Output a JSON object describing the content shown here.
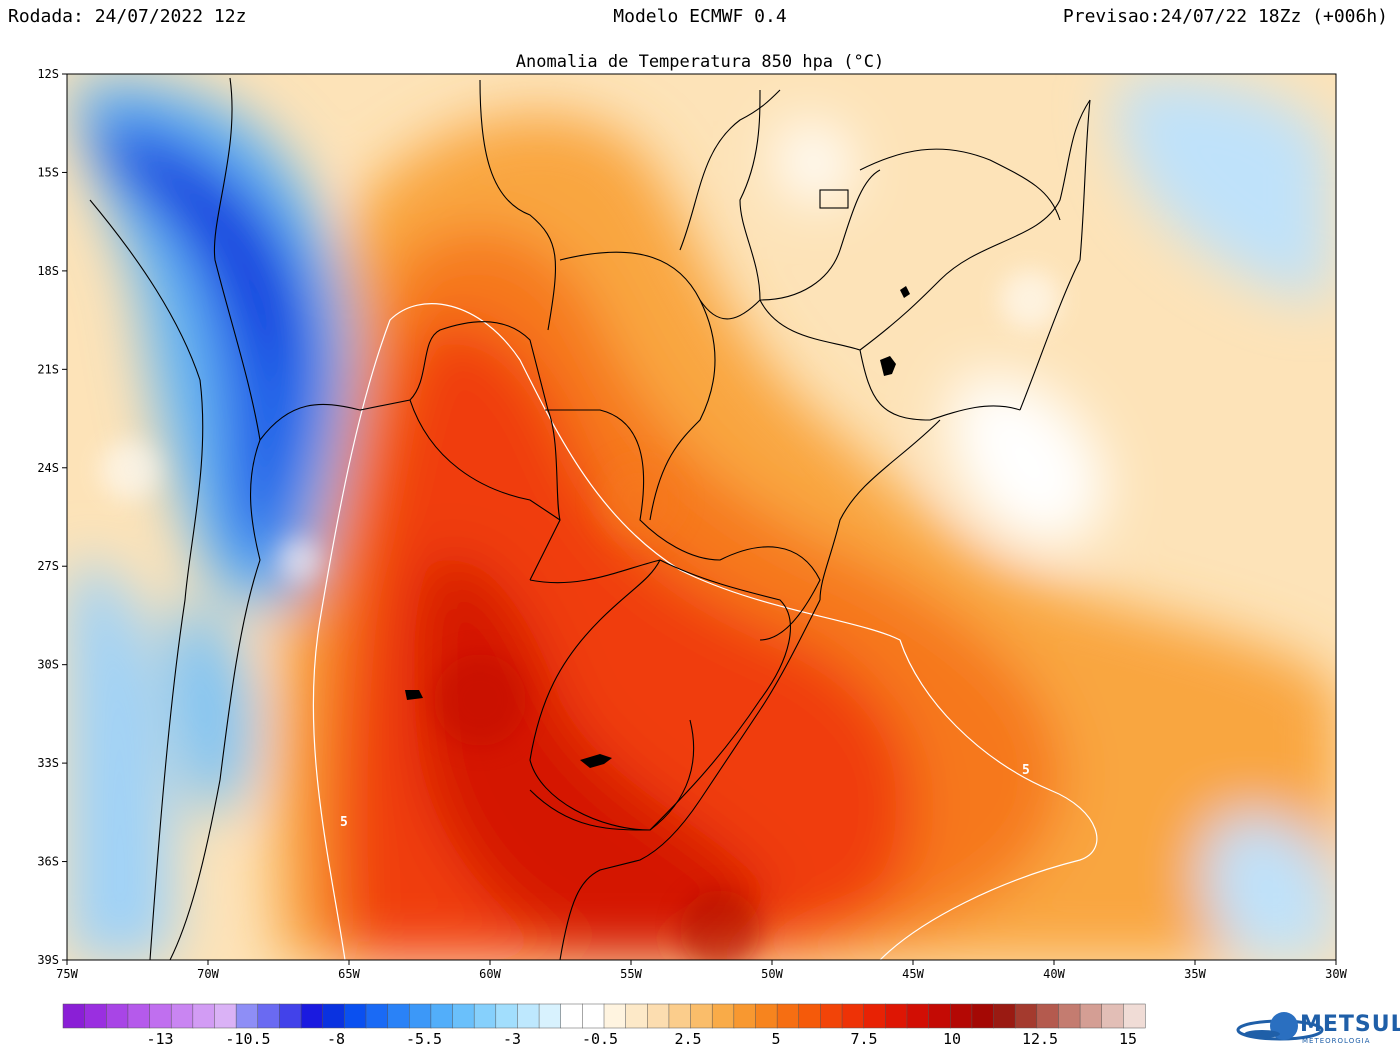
{
  "header": {
    "run": "Rodada: 24/07/2022 12z",
    "model": "Modelo ECMWF 0.4",
    "forecast": "Previsao:24/07/22 18Zz (+006h)"
  },
  "subtitle": "Anomalia de Temperatura 850 hpa (°C)",
  "map": {
    "lat_labels": [
      "12S",
      "15S",
      "18S",
      "21S",
      "24S",
      "27S",
      "30S",
      "33S",
      "36S",
      "39S"
    ],
    "lon_labels": [
      "75W",
      "70W",
      "65W",
      "60W",
      "55W",
      "50W",
      "45W",
      "40W",
      "35W",
      "30W"
    ],
    "contour_label": "5",
    "extent": {
      "lon": [
        -75,
        -30
      ],
      "lat": [
        -39,
        -12
      ]
    }
  },
  "colorbar": {
    "labels": [
      "-13",
      "-10.5",
      "-8",
      "-5.5",
      "-3",
      "-0.5",
      "2.5",
      "5",
      "7.5",
      "10",
      "12.5",
      "15"
    ],
    "colors": [
      "#8a1fd6",
      "#9a2fe0",
      "#a845e6",
      "#b55aeb",
      "#c06fef",
      "#c985f2",
      "#d29cf4",
      "#dab2f6",
      "#8e8ef6",
      "#6a6af2",
      "#4242ea",
      "#1a1ae0",
      "#0a32e0",
      "#0a50f0",
      "#1a6af5",
      "#2a82f7",
      "#3c98f8",
      "#52aefa",
      "#6ac0fb",
      "#86d0fc",
      "#a2defd",
      "#bee8fe",
      "#d8f2fe",
      "#ffffff",
      "#ffffff",
      "#fff4e0",
      "#fde9c8",
      "#fcddb0",
      "#fbcd8c",
      "#fabd6a",
      "#f9ab48",
      "#f89830",
      "#f7841e",
      "#f66e12",
      "#f55a0a",
      "#f24408",
      "#ee3206",
      "#e82204",
      "#de1604",
      "#d20e04",
      "#c40a04",
      "#b40804",
      "#a40804",
      "#9a1a12",
      "#a43a2e",
      "#b45a4e",
      "#c47c70",
      "#d49e94",
      "#e2beb6",
      "#f0dcd6"
    ]
  },
  "brand": {
    "name": "METSUL",
    "sub": "METEOROLOGIA",
    "color": "#1f5fa8"
  }
}
